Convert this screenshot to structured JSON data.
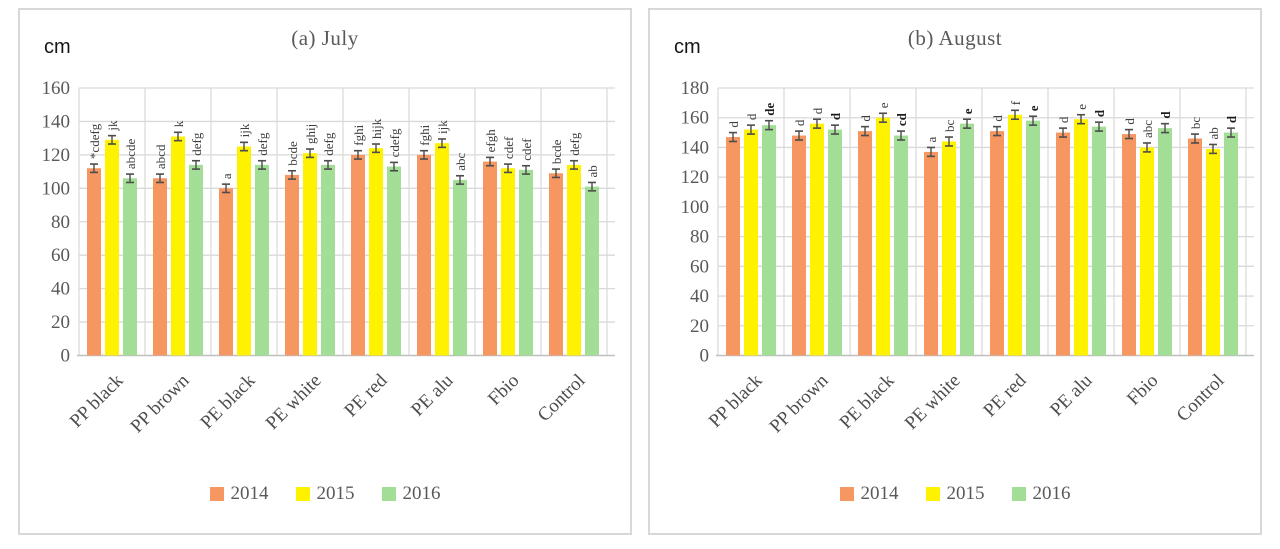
{
  "chart_data": [
    {
      "type": "bar",
      "title": "(a) July",
      "unit_label": "cm",
      "xlabel": "",
      "ylabel": "cm",
      "ylim": [
        0,
        160
      ],
      "ytick_step": 20,
      "grid": true,
      "vertical_gridlines": true,
      "legend_position": "bottom",
      "error_bar": 2.5,
      "categories": [
        "PP black",
        "PP brown",
        "PE black",
        "PE white",
        "PE red",
        "PE alu",
        "Fbio",
        "Control"
      ],
      "series": [
        {
          "name": "2014",
          "color": "#F69762",
          "values": [
            112,
            106,
            100,
            108,
            120,
            120,
            116,
            109
          ],
          "letters": [
            "*cdefg",
            "abcd",
            "a",
            "bcde",
            "fghi",
            "fghi",
            "efgh",
            "bcde"
          ],
          "letters_bold": false
        },
        {
          "name": "2015",
          "color": "#FFF200",
          "values": [
            129,
            131,
            125,
            121,
            124,
            127,
            112,
            114
          ],
          "letters": [
            "jk",
            "k",
            "ijk",
            "ghij",
            "hijk",
            "ijk",
            "cdef",
            "defg"
          ],
          "letters_bold": false
        },
        {
          "name": "2016",
          "color": "#A2DE96",
          "values": [
            106,
            114,
            114,
            114,
            113,
            105,
            111,
            101
          ],
          "letters": [
            "abcde",
            "defg",
            "defg",
            "defg",
            "cdefg",
            "abc",
            "cdef",
            "ab"
          ],
          "letters_bold": false
        }
      ]
    },
    {
      "type": "bar",
      "title": "(b) August",
      "unit_label": "cm",
      "xlabel": "",
      "ylabel": "cm",
      "ylim": [
        0,
        180
      ],
      "ytick_step": 20,
      "grid": true,
      "vertical_gridlines": true,
      "legend_position": "bottom",
      "error_bar": 3,
      "categories": [
        "PP black",
        "PP brown",
        "PE black",
        "PE white",
        "PE red",
        "PE alu",
        "Fbio",
        "Control"
      ],
      "series": [
        {
          "name": "2014",
          "color": "#F69762",
          "values": [
            147,
            148,
            151,
            137,
            151,
            150,
            149,
            146
          ],
          "letters": [
            "d",
            "d",
            "d",
            "a",
            "d",
            "d",
            "d",
            "bc"
          ],
          "letters_bold": false
        },
        {
          "name": "2015",
          "color": "#FFF200",
          "values": [
            152,
            156,
            160,
            144,
            162,
            159,
            140,
            139
          ],
          "letters": [
            "d",
            "d",
            "e",
            "bc",
            "f",
            "e",
            "abc",
            "ab"
          ],
          "letters_bold": false
        },
        {
          "name": "2016",
          "color": "#A2DE96",
          "values": [
            155,
            152,
            148,
            156,
            158,
            154,
            153,
            150
          ],
          "letters": [
            "de",
            "d",
            "cd",
            "e",
            "e",
            "d",
            "d",
            "d"
          ],
          "letters_bold": true
        }
      ]
    }
  ],
  "style_colors": {
    "gridline": "#D9D9D9",
    "axis_line": "#BFBFBF",
    "error_bar_stroke": "#4d4d4d",
    "tick_text": "#595959"
  }
}
